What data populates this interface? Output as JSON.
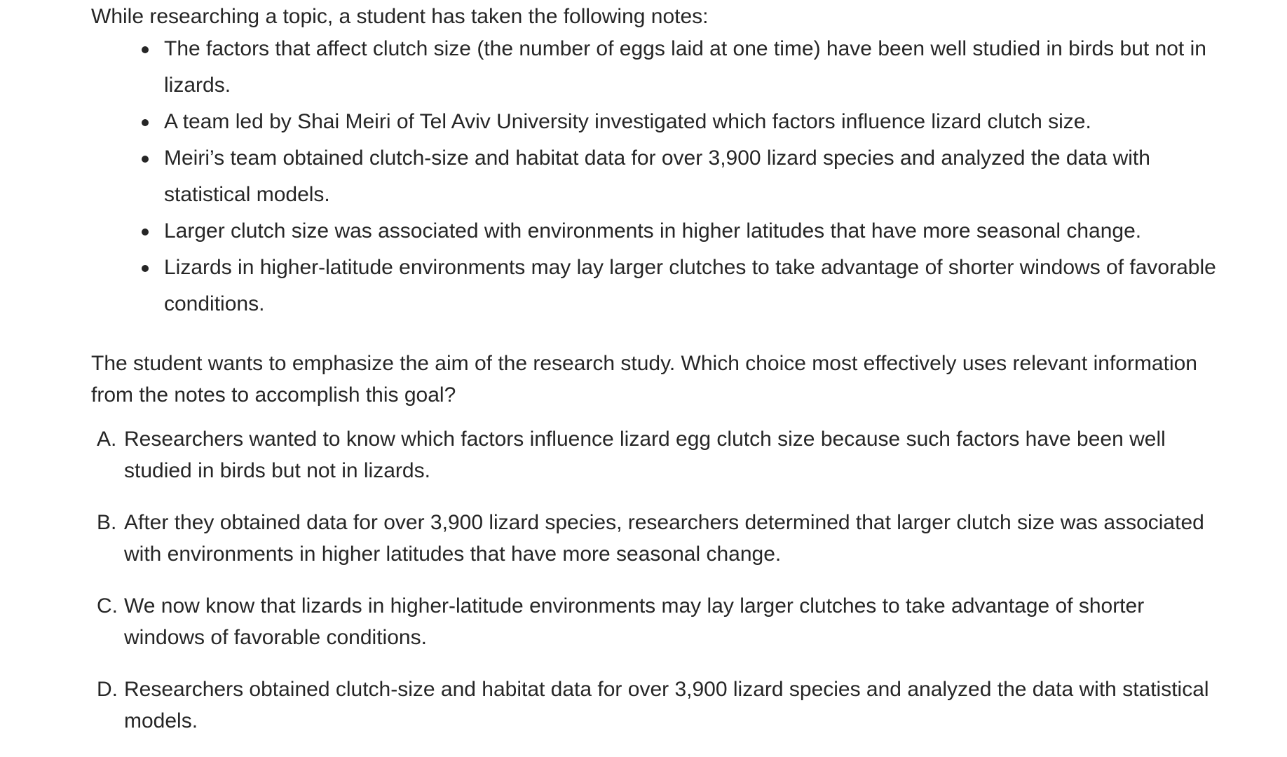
{
  "intro": "While researching a topic, a student has taken the following notes:",
  "notes": [
    "The factors that affect clutch size (the number of eggs laid at one time) have been well studied in birds but not in lizards.",
    "A team led by Shai Meiri of Tel Aviv University investigated which factors influence lizard clutch size.",
    "Meiri’s team obtained clutch-size and habitat data for over 3,900 lizard species and analyzed the data with statistical models.",
    "Larger clutch size was associated with environments in higher latitudes that have more seasonal change.",
    "Lizards in higher-latitude environments may lay larger clutches to take advantage of shorter windows of favorable conditions."
  ],
  "question": "The student wants to emphasize the aim of the research study. Which choice most effectively uses relevant information from the notes to accomplish this goal?",
  "choices": [
    {
      "letter": "A.",
      "text": "Researchers wanted to know which factors influence lizard egg clutch size because such factors have been well studied in birds but not in lizards."
    },
    {
      "letter": "B.",
      "text": "After they obtained data for over 3,900 lizard species, researchers determined that larger clutch size was associated with environments in higher latitudes that have more seasonal change."
    },
    {
      "letter": "C.",
      "text": "We now know that lizards in higher-latitude environments may lay larger clutches to take advantage of shorter windows of favorable conditions."
    },
    {
      "letter": "D.",
      "text": "Researchers obtained clutch-size and habitat data for over 3,900 lizard species and analyzed the data with statistical models."
    }
  ]
}
